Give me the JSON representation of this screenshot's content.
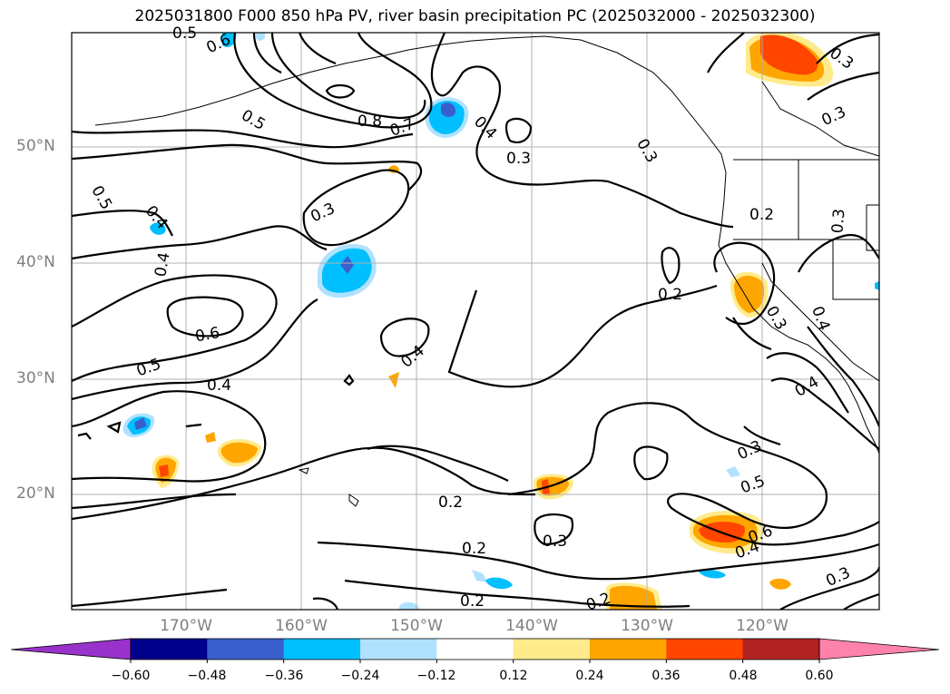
{
  "title": "2025031800 F000 850 hPa PV, river basin precipitation PC (2025032000 - 2025032300)",
  "lat_labels": [
    "50°N",
    "40°N",
    "30°N",
    "20°N"
  ],
  "lon_labels": [
    "170°W",
    "160°W",
    "150°W",
    "140°W",
    "130°W",
    "120°W"
  ],
  "colorbar": {
    "ticks": [
      "−0.60",
      "−0.48",
      "−0.36",
      "−0.24",
      "−0.12",
      "0.12",
      "0.24",
      "0.36",
      "0.48",
      "0.60"
    ],
    "colors": [
      "#9932cc",
      "#00008b",
      "#3a5fcd",
      "#00bfff",
      "#b0e2ff",
      "#ffffff",
      "#ffeb8c",
      "#ffa500",
      "#ff4500",
      "#b22222",
      "#ff82ab"
    ]
  },
  "contour_labels": [
    "0.5",
    "0.6",
    "0.5",
    "0.8",
    "0.7",
    "0.4",
    "0.3",
    "0.3",
    "0.3",
    "0.3",
    "0.5",
    "0.4",
    "0.4",
    "0.3",
    "0.2",
    "0.3",
    "0.2",
    "0.6",
    "0.5",
    "0.4",
    "0.4",
    "0.3",
    "0.4",
    "0.4",
    "0.3",
    "0.5",
    "0.6",
    "0.4",
    "0.2",
    "0.3",
    "0.2",
    "0.2",
    "0.2",
    "0.3"
  ],
  "colors": {
    "grid": "#b0b0b0",
    "contour": "#000000",
    "axis_label": "#7f7f7f"
  }
}
